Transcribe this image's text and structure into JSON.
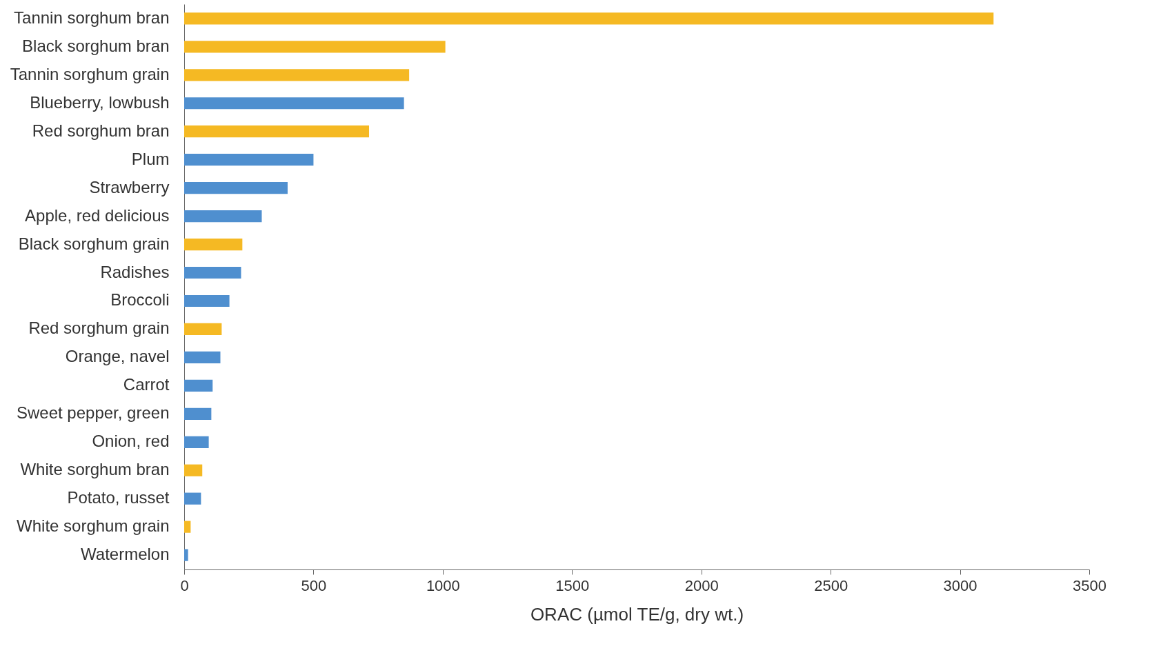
{
  "chart_data": {
    "type": "bar",
    "orientation": "horizontal",
    "xlabel": "ORAC (µmol TE/g, dry wt.)",
    "categories": [
      "Tannin sorghum bran",
      "Black sorghum bran",
      "Tannin sorghum grain",
      "Blueberry, lowbush",
      "Red sorghum bran",
      "Plum",
      "Strawberry",
      "Apple, red delicious",
      "Black sorghum grain",
      "Radishes",
      "Broccoli",
      "Red sorghum grain",
      "Orange, navel",
      "Carrot",
      "Sweet pepper, green",
      "Onion, red",
      "White sorghum bran",
      "Potato, russet",
      "White sorghum grain",
      "Watermelon"
    ],
    "values": [
      3130,
      1010,
      870,
      850,
      715,
      500,
      400,
      300,
      225,
      220,
      175,
      145,
      140,
      110,
      105,
      95,
      70,
      65,
      25,
      15
    ],
    "colors": [
      "#f5b923",
      "#f5b923",
      "#f5b923",
      "#4f8fcf",
      "#f5b923",
      "#4f8fcf",
      "#4f8fcf",
      "#4f8fcf",
      "#f5b923",
      "#4f8fcf",
      "#4f8fcf",
      "#f5b923",
      "#4f8fcf",
      "#4f8fcf",
      "#4f8fcf",
      "#4f8fcf",
      "#f5b923",
      "#4f8fcf",
      "#f5b923",
      "#4f8fcf"
    ],
    "xlim": [
      0,
      3500
    ],
    "xticks": [
      0,
      500,
      1000,
      1500,
      2000,
      2500,
      3000,
      3500
    ],
    "grid": false
  }
}
